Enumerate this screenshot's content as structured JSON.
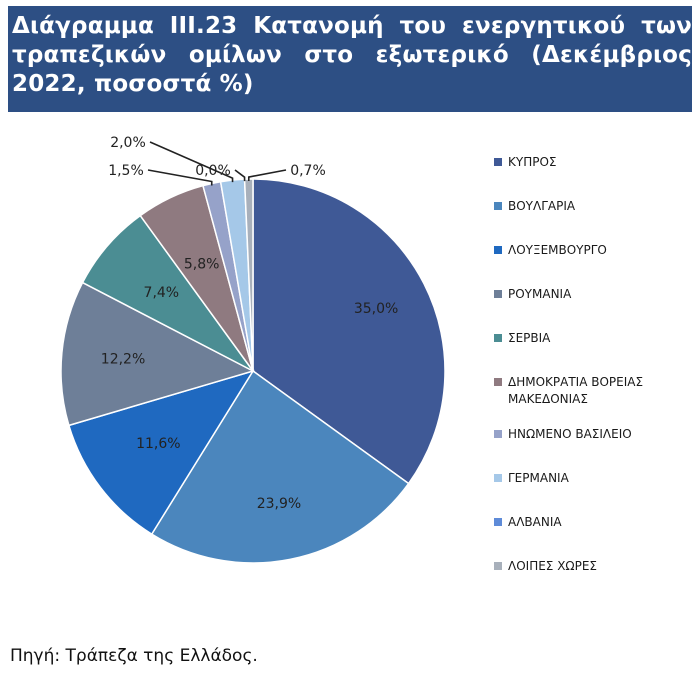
{
  "title": "Διάγραμμα ΙΙΙ.23 Κατανομή του ενεργητικού των τραπεζικών ομίλων στο εξωτερικό (Δεκέμβριος 2022, ποσοστά %)",
  "source": "Πηγή: Τράπεζα της Ελλάδος.",
  "colors": {
    "title_bg": "#2d4f84",
    "title_text": "#ffffff"
  },
  "chart_data": {
    "type": "pie",
    "title": "Διάγραμμα ΙΙΙ.23 Κατανομή του ενεργητικού των τραπεζικών ομίλων στο εξωτερικό (Δεκέμβριος 2022, ποσοστά %)",
    "legend_position": "right",
    "slices": [
      {
        "label": "ΚΥΠΡΟΣ",
        "value": 35.0,
        "value_label": "35,0%",
        "color": "#3f5996"
      },
      {
        "label": "ΒΟΥΛΓΑΡΙΑ",
        "value": 23.9,
        "value_label": "23,9%",
        "color": "#4b86bd"
      },
      {
        "label": "ΛΟΥΞΕΜΒΟΥΡΓΟ",
        "value": 11.6,
        "value_label": "11,6%",
        "color": "#1f69c0"
      },
      {
        "label": "ΡΟΥΜΑΝΙΑ",
        "value": 12.2,
        "value_label": "12,2%",
        "color": "#6e7f98"
      },
      {
        "label": "ΣΕΡΒΙΑ",
        "value": 7.4,
        "value_label": "7,4%",
        "color": "#4b8d93"
      },
      {
        "label": "ΔΗΜΟΚΡΑΤΙΑ ΒΟΡΕΙΑΣ ΜΑΚΕΔΟΝΙΑΣ",
        "value": 5.8,
        "value_label": "5,8%",
        "color": "#8f7a80"
      },
      {
        "label": "ΗΝΩΜΕΝΟ ΒΑΣΙΛΕΙΟ",
        "value": 1.5,
        "value_label": "1,5%",
        "color": "#96a2c9"
      },
      {
        "label": "ΓΕΡΜΑΝΙΑ",
        "value": 2.0,
        "value_label": "2,0%",
        "color": "#a5c8e8"
      },
      {
        "label": "ΑΛΒΑΝΙΑ",
        "value": 0.0,
        "value_label": "0,0%",
        "color": "#5e8bd8"
      },
      {
        "label": "ΛΟΙΠΕΣ ΧΩΡΕΣ",
        "value": 0.7,
        "value_label": "0,7%",
        "color": "#a8b0bb"
      }
    ]
  }
}
